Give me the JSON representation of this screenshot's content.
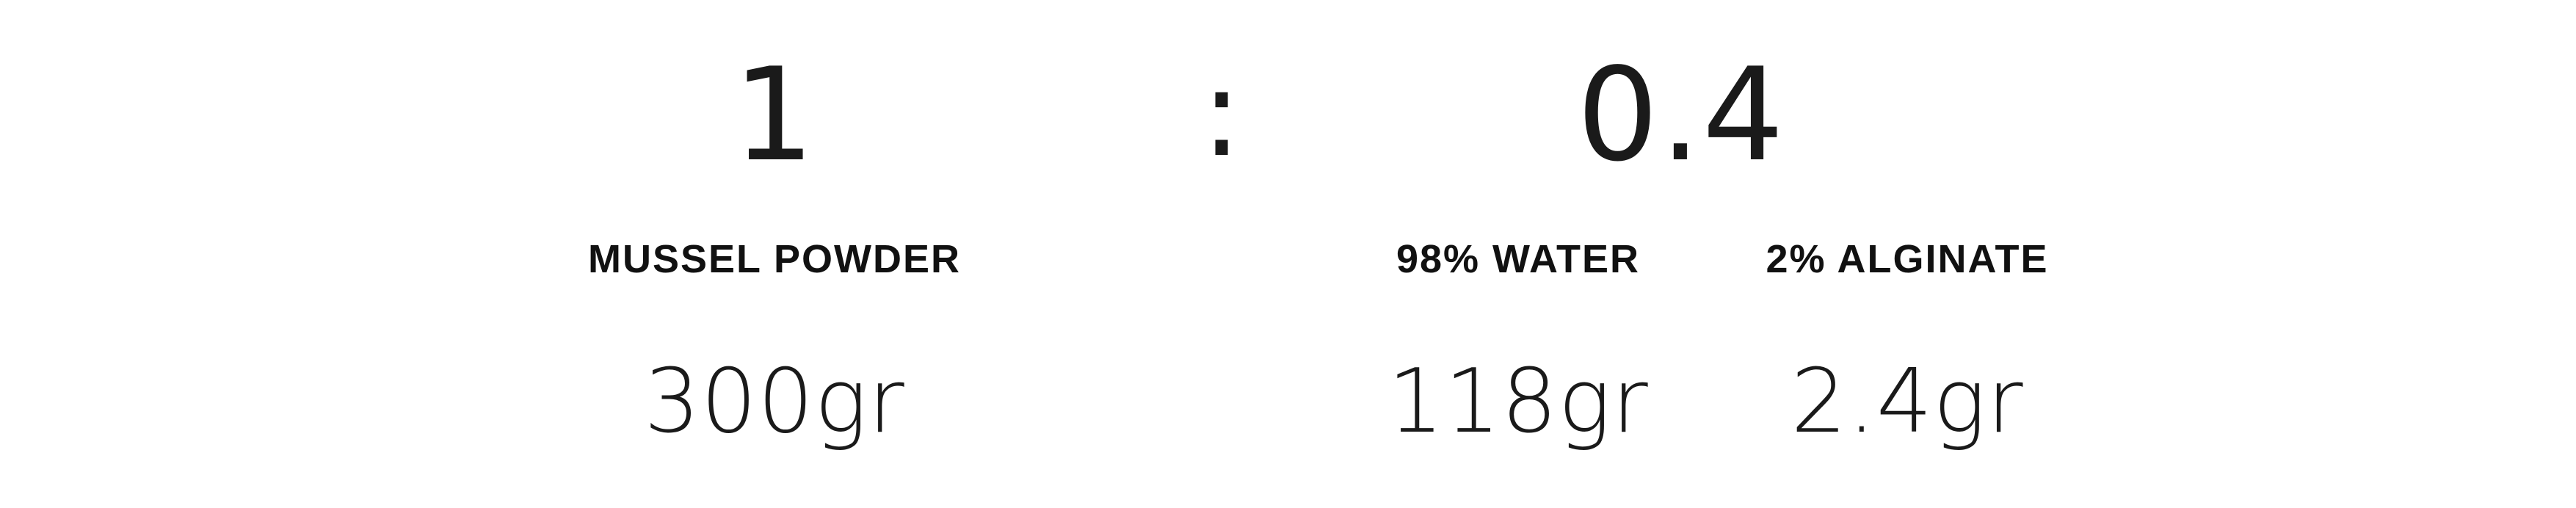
{
  "ratio": {
    "left": "1",
    "separator": ":",
    "right": "0.4"
  },
  "ingredients": [
    {
      "label": "MUSSEL POWDER",
      "amount": "300gr"
    },
    {
      "label": "98% WATER",
      "amount": "118gr"
    },
    {
      "label": "2% ALGINATE",
      "amount": "2.4gr"
    }
  ]
}
